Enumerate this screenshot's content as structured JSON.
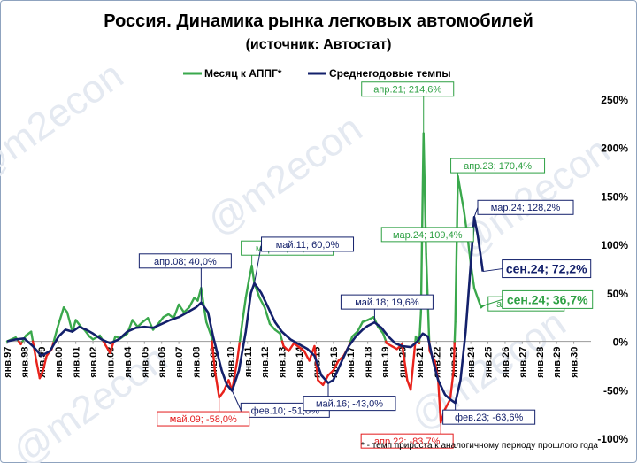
{
  "chart_data": {
    "type": "line",
    "title": "Россия. Динамика рынка легковых автомобилей",
    "subtitle": "(источник: Автостат)",
    "footnote": "* - темп прироста к аналогичному периоду прошлого года",
    "watermark": "@m2econ",
    "legend": {
      "placement": "top-left",
      "entries": [
        "Месяц к АППГ*",
        "Среднегодовые темпы"
      ]
    },
    "y_axis": {
      "min": -100,
      "max": 250,
      "unit": "%",
      "position": "right",
      "ticks": [
        -100,
        -50,
        0,
        50,
        100,
        150,
        200,
        250
      ],
      "tick_labels": [
        "-100%",
        "-50%",
        "0%",
        "50%",
        "100%",
        "150%",
        "200%",
        "250%"
      ]
    },
    "x_axis": {
      "start": 1997,
      "end": 2031,
      "tick_labels": [
        "янв.97",
        "янв.98",
        "янв.99",
        "янв.00",
        "янв.01",
        "янв.02",
        "янв.03",
        "янв.04",
        "янв.05",
        "янв.06",
        "янв.07",
        "янв.08",
        "янв.09",
        "янв.10",
        "янв.11",
        "янв.12",
        "янв.13",
        "янв.14",
        "янв.15",
        "янв.16",
        "янв.17",
        "янв.18",
        "янв.19",
        "янв.20",
        "янв.21",
        "янв.22",
        "янв.23",
        "янв.24",
        "янв.25",
        "янв.26",
        "янв.27",
        "янв.28",
        "янв.29",
        "янв.30"
      ]
    },
    "colors": {
      "monthly_positive": "#3aa84c",
      "monthly_negative": "#e8221b",
      "annual": "#13206b",
      "annotation_green": "#2ea043",
      "annotation_red": "#e31a1c",
      "annotation_navy": "#13206b"
    },
    "grid": "off",
    "series": [
      {
        "name": "Месяц к АППГ*",
        "points": [
          [
            1997.0,
            0
          ],
          [
            1997.5,
            4
          ],
          [
            1997.8,
            -3
          ],
          [
            1998.1,
            6
          ],
          [
            1998.4,
            10
          ],
          [
            1998.7,
            -20
          ],
          [
            1998.9,
            -38
          ],
          [
            1999.1,
            -30
          ],
          [
            1999.3,
            -15
          ],
          [
            1999.6,
            -8
          ],
          [
            1999.9,
            12
          ],
          [
            2000.0,
            18
          ],
          [
            2000.3,
            35
          ],
          [
            2000.5,
            30
          ],
          [
            2000.8,
            10
          ],
          [
            2001.0,
            22
          ],
          [
            2001.3,
            15
          ],
          [
            2001.5,
            12
          ],
          [
            2001.8,
            5
          ],
          [
            2002.0,
            2
          ],
          [
            2002.4,
            6
          ],
          [
            2002.7,
            -3
          ],
          [
            2003.0,
            -12
          ],
          [
            2003.3,
            5
          ],
          [
            2003.6,
            3
          ],
          [
            2004.0,
            8
          ],
          [
            2004.3,
            22
          ],
          [
            2004.6,
            15
          ],
          [
            2004.9,
            20
          ],
          [
            2005.2,
            24
          ],
          [
            2005.5,
            12
          ],
          [
            2005.8,
            18
          ],
          [
            2006.1,
            25
          ],
          [
            2006.4,
            28
          ],
          [
            2006.7,
            24
          ],
          [
            2007.0,
            38
          ],
          [
            2007.3,
            30
          ],
          [
            2007.6,
            35
          ],
          [
            2007.9,
            45
          ],
          [
            2008.1,
            42
          ],
          [
            2008.3,
            55
          ],
          [
            2008.6,
            20
          ],
          [
            2008.9,
            5
          ],
          [
            2009.1,
            -30
          ],
          [
            2009.35,
            -58
          ],
          [
            2009.6,
            -52
          ],
          [
            2009.9,
            -40
          ],
          [
            2010.1,
            -51
          ],
          [
            2010.4,
            -20
          ],
          [
            2010.7,
            20
          ],
          [
            2010.9,
            45
          ],
          [
            2011.1,
            65
          ],
          [
            2011.25,
            78
          ],
          [
            2011.4,
            60
          ],
          [
            2011.7,
            45
          ],
          [
            2012.0,
            35
          ],
          [
            2012.3,
            18
          ],
          [
            2012.6,
            12
          ],
          [
            2012.9,
            8
          ],
          [
            2013.1,
            -5
          ],
          [
            2013.4,
            -10
          ],
          [
            2013.7,
            -2
          ],
          [
            2014.0,
            -6
          ],
          [
            2014.3,
            -10
          ],
          [
            2014.6,
            -20
          ],
          [
            2014.9,
            -5
          ],
          [
            2015.1,
            -40
          ],
          [
            2015.4,
            -45
          ],
          [
            2015.7,
            -35
          ],
          [
            2016.0,
            -30
          ],
          [
            2016.3,
            -20
          ],
          [
            2016.6,
            -15
          ],
          [
            2016.9,
            -5
          ],
          [
            2017.1,
            5
          ],
          [
            2017.4,
            10
          ],
          [
            2017.7,
            20
          ],
          [
            2018.0,
            22
          ],
          [
            2018.35,
            25
          ],
          [
            2018.6,
            15
          ],
          [
            2018.9,
            8
          ],
          [
            2019.1,
            -2
          ],
          [
            2019.4,
            -5
          ],
          [
            2019.7,
            -8
          ],
          [
            2020.0,
            -3
          ],
          [
            2020.3,
            -40
          ],
          [
            2020.5,
            -50
          ],
          [
            2020.8,
            5
          ],
          [
            2021.0,
            -2
          ],
          [
            2021.1,
            30
          ],
          [
            2021.25,
            214.6
          ],
          [
            2021.4,
            90
          ],
          [
            2021.6,
            -10
          ],
          [
            2021.9,
            -20
          ],
          [
            2022.1,
            -40
          ],
          [
            2022.25,
            -83.7
          ],
          [
            2022.5,
            -70
          ],
          [
            2022.8,
            -60
          ],
          [
            2023.0,
            -30
          ],
          [
            2023.1,
            20
          ],
          [
            2023.25,
            170.4
          ],
          [
            2023.4,
            155
          ],
          [
            2023.6,
            135
          ],
          [
            2023.8,
            109.4
          ],
          [
            2024.0,
            80
          ],
          [
            2024.2,
            55
          ],
          [
            2024.4,
            45
          ],
          [
            2024.6,
            35.1
          ],
          [
            2024.7,
            36.7
          ]
        ]
      },
      {
        "name": "Среднегодовые темпы",
        "points": [
          [
            1997.0,
            0
          ],
          [
            1997.5,
            2
          ],
          [
            1998.0,
            3
          ],
          [
            1998.5,
            -5
          ],
          [
            1999.0,
            -15
          ],
          [
            1999.5,
            -10
          ],
          [
            2000.0,
            5
          ],
          [
            2000.4,
            12
          ],
          [
            2000.8,
            10
          ],
          [
            2001.2,
            15
          ],
          [
            2001.6,
            12
          ],
          [
            2002.0,
            8
          ],
          [
            2002.5,
            2
          ],
          [
            2003.0,
            -2
          ],
          [
            2003.5,
            2
          ],
          [
            2004.0,
            10
          ],
          [
            2004.5,
            14
          ],
          [
            2005.0,
            15
          ],
          [
            2005.5,
            14
          ],
          [
            2006.0,
            18
          ],
          [
            2006.5,
            22
          ],
          [
            2007.0,
            25
          ],
          [
            2007.5,
            30
          ],
          [
            2008.0,
            35
          ],
          [
            2008.3,
            40
          ],
          [
            2008.7,
            30
          ],
          [
            2009.0,
            5
          ],
          [
            2009.5,
            -30
          ],
          [
            2009.8,
            -45
          ],
          [
            2010.1,
            -51
          ],
          [
            2010.5,
            -30
          ],
          [
            2010.9,
            10
          ],
          [
            2011.2,
            50
          ],
          [
            2011.4,
            60
          ],
          [
            2011.8,
            50
          ],
          [
            2012.2,
            35
          ],
          [
            2012.6,
            20
          ],
          [
            2013.0,
            10
          ],
          [
            2013.5,
            2
          ],
          [
            2014.0,
            -3
          ],
          [
            2014.5,
            -8
          ],
          [
            2014.9,
            -15
          ],
          [
            2015.3,
            -35
          ],
          [
            2015.7,
            -43
          ],
          [
            2016.0,
            -40
          ],
          [
            2016.5,
            -20
          ],
          [
            2016.9,
            -5
          ],
          [
            2017.3,
            5
          ],
          [
            2017.7,
            12
          ],
          [
            2018.0,
            16
          ],
          [
            2018.4,
            19.6
          ],
          [
            2018.8,
            14
          ],
          [
            2019.2,
            5
          ],
          [
            2019.6,
            -2
          ],
          [
            2020.0,
            -5
          ],
          [
            2020.5,
            -6
          ],
          [
            2020.9,
            0
          ],
          [
            2021.2,
            8
          ],
          [
            2021.5,
            5
          ],
          [
            2021.8,
            -20
          ],
          [
            2022.1,
            -40
          ],
          [
            2022.5,
            -55
          ],
          [
            2022.8,
            -60
          ],
          [
            2023.1,
            -63.6
          ],
          [
            2023.4,
            -40
          ],
          [
            2023.7,
            10
          ],
          [
            2024.0,
            80
          ],
          [
            2024.2,
            128.2
          ],
          [
            2024.4,
            110
          ],
          [
            2024.6,
            85
          ],
          [
            2024.7,
            72.2
          ]
        ]
      }
    ],
    "annotations": [
      {
        "text": "апр.21; 214,6%",
        "x": 2021.25,
        "y": 214.6,
        "color": "green"
      },
      {
        "text": "апр.23; 170,4%",
        "x": 2023.25,
        "y": 170.4,
        "color": "green"
      },
      {
        "text": "мар.11; 78,0%",
        "x": 2011.25,
        "y": 78.0,
        "color": "green"
      },
      {
        "text": "мар.24; 109,4%",
        "x": 2023.8,
        "y": 109.4,
        "color": "green"
      },
      {
        "text": "авг.24; 35,1%",
        "x": 2024.6,
        "y": 35.1,
        "color": "green"
      },
      {
        "text": "сен.24; 36,7%",
        "x": 2024.7,
        "y": 36.7,
        "color": "green"
      },
      {
        "text": "апр.08; 40,0%",
        "x": 2008.3,
        "y": 40.0,
        "color": "navy"
      },
      {
        "text": "май.11; 60,0%",
        "x": 2011.4,
        "y": 60.0,
        "color": "navy"
      },
      {
        "text": "май.18; 19,6%",
        "x": 2018.4,
        "y": 19.6,
        "color": "navy"
      },
      {
        "text": "мар.24; 128,2%",
        "x": 2024.2,
        "y": 128.2,
        "color": "navy"
      },
      {
        "text": "сен.24; 72,2%",
        "x": 2024.7,
        "y": 72.2,
        "color": "navy"
      },
      {
        "text": "фев.10; -51,0%",
        "x": 2010.1,
        "y": -51.0,
        "color": "navy"
      },
      {
        "text": "май.16; -43,0%",
        "x": 2015.7,
        "y": -43.0,
        "color": "navy"
      },
      {
        "text": "фев.23; -63,6%",
        "x": 2023.1,
        "y": -63.6,
        "color": "navy"
      },
      {
        "text": "май.09; -58,0%",
        "x": 2009.35,
        "y": -58.0,
        "color": "red"
      },
      {
        "text": "апр.22; -83,7%",
        "x": 2022.25,
        "y": -83.7,
        "color": "red"
      }
    ]
  }
}
